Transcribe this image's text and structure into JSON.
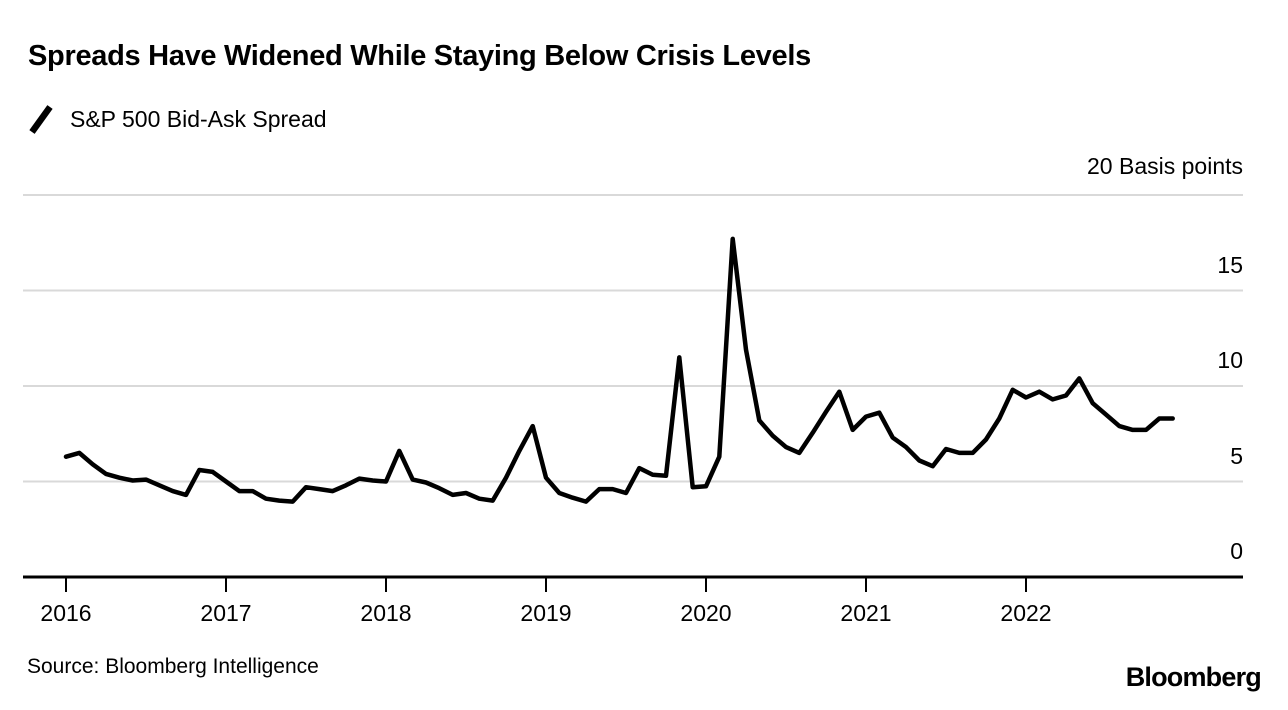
{
  "header": {
    "title": "Spreads Have Widened While Staying Below Crisis Levels",
    "legend_label": "S&P 500 Bid-Ask Spread"
  },
  "chart_data": {
    "type": "line",
    "title": "Spreads Have Widened While Staying Below Crisis Levels",
    "series_name": "S&P 500 Bid-Ask Spread",
    "unit_label": "20 Basis points",
    "ylabel": "Basis points",
    "ylim": [
      0,
      20
    ],
    "yticks": [
      0,
      5,
      10,
      15,
      20
    ],
    "ytick_labels": [
      "0",
      "5",
      "10",
      "15"
    ],
    "xticks": [
      "2016",
      "2017",
      "2018",
      "2019",
      "2020",
      "2021",
      "2022"
    ],
    "x_start": "2016-01",
    "x_end": "2022-12",
    "x_frequency": "monthly",
    "grid": true,
    "legend_position": "top-left",
    "line_color": "#000000",
    "grid_color": "#d9d9d9",
    "axis_color": "#000000",
    "values": [
      6.3,
      6.5,
      5.9,
      5.4,
      5.2,
      5.05,
      5.1,
      4.8,
      4.5,
      4.3,
      5.6,
      5.5,
      5.0,
      4.5,
      4.5,
      4.1,
      4.0,
      3.95,
      4.7,
      4.6,
      4.5,
      4.8,
      5.15,
      5.05,
      5.0,
      6.6,
      5.1,
      4.95,
      4.65,
      4.3,
      4.4,
      4.1,
      4.0,
      5.2,
      6.6,
      7.9,
      5.2,
      4.4,
      4.15,
      3.95,
      4.6,
      4.6,
      4.4,
      5.7,
      5.35,
      5.3,
      11.5,
      4.7,
      4.75,
      6.3,
      17.7,
      11.9,
      8.2,
      7.4,
      6.8,
      6.5,
      7.55,
      8.65,
      9.7,
      7.7,
      8.4,
      8.6,
      7.3,
      6.8,
      6.1,
      5.8,
      6.7,
      6.5,
      6.5,
      7.2,
      8.3,
      9.8,
      9.4,
      9.7,
      9.3,
      9.5,
      10.4,
      9.1,
      8.5,
      7.9,
      7.7,
      7.7,
      8.3,
      8.3
    ]
  },
  "footer": {
    "source": "Source: Bloomberg Intelligence",
    "brand": "Bloomberg"
  }
}
